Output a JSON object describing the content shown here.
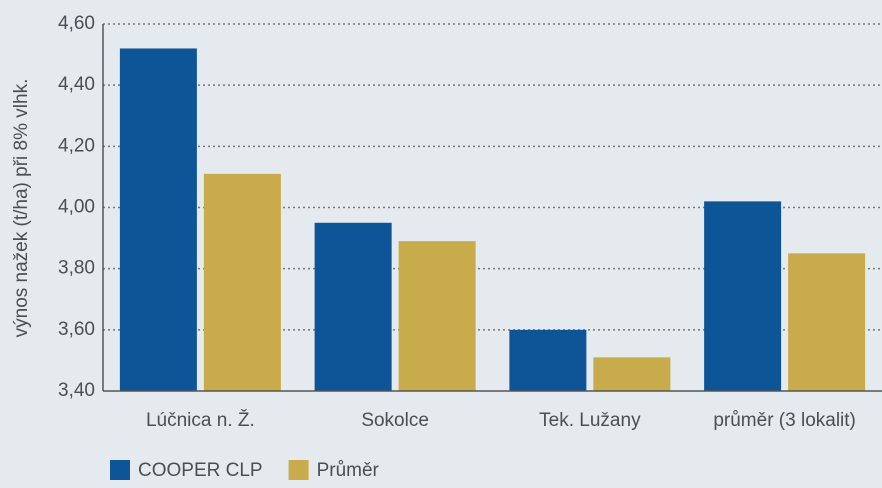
{
  "chart_data": {
    "type": "bar",
    "y_label": "výnos nažek (t/ha) při 8% vlhk.",
    "categories": [
      "Lúčnica n. Ž.",
      "Sokolce",
      "Tek. Lužany",
      "průměr (3 lokalit)"
    ],
    "series": [
      {
        "name": "COOPER CLP",
        "color": "#0d5597",
        "values": [
          4.52,
          3.95,
          3.6,
          4.02
        ]
      },
      {
        "name": "Průměr",
        "color": "#c8ab4b",
        "values": [
          4.11,
          3.89,
          3.51,
          3.85
        ]
      }
    ],
    "ylim": [
      3.4,
      4.6
    ],
    "yticks": [
      {
        "value": 3.4,
        "label": "3,40"
      },
      {
        "value": 3.6,
        "label": "3,60"
      },
      {
        "value": 3.8,
        "label": "3,80"
      },
      {
        "value": 4.0,
        "label": "4,00"
      },
      {
        "value": 4.2,
        "label": "4,20"
      },
      {
        "value": 4.4,
        "label": "4,40"
      },
      {
        "value": 4.6,
        "label": "4,60"
      }
    ],
    "grid": true,
    "legend": "bottom-left"
  }
}
